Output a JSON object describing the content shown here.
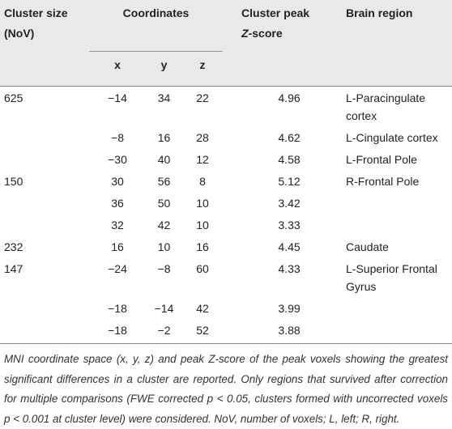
{
  "table": {
    "header": {
      "cluster_size": "Cluster size (NoV)",
      "coordinates": "Coordinates",
      "peak": {
        "line1": "Cluster peak",
        "z": "Z",
        "rest": "-score"
      },
      "region": "Brain region",
      "x": "x",
      "y": "y",
      "z": "z"
    },
    "rows": [
      [
        "625",
        "−14",
        "34",
        "22",
        "4.96",
        "L-Paracingulate cortex"
      ],
      [
        null,
        "−8",
        "16",
        "28",
        "4.62",
        "L-Cingulate cortex"
      ],
      [
        null,
        "−30",
        "40",
        "12",
        "4.58",
        "L-Frontal Pole"
      ],
      [
        "150",
        "30",
        "56",
        "8",
        "5.12",
        "R-Frontal Pole"
      ],
      [
        null,
        "36",
        "50",
        "10",
        "3.42",
        null
      ],
      [
        null,
        "32",
        "42",
        "10",
        "3.33",
        null
      ],
      [
        "232",
        "16",
        "10",
        "16",
        "4.45",
        "Caudate"
      ],
      [
        "147",
        "−24",
        "−8",
        "60",
        "4.33",
        "L-Superior Frontal Gyrus"
      ],
      [
        null,
        "−18",
        "−14",
        "42",
        "3.99",
        null
      ],
      [
        null,
        "−18",
        "−2",
        "52",
        "3.88",
        null
      ]
    ],
    "footnote": "MNI coordinate space (x, y, z) and peak Z-score of the peak voxels showing the greatest significant differences in a cluster are reported. Only regions that survived after correction for multiple comparisons (FWE corrected p < 0.05, clusters formed with uncorrected voxels p < 0.001 at cluster level) were considered. NoV, number of voxels; L, left; R, right."
  }
}
